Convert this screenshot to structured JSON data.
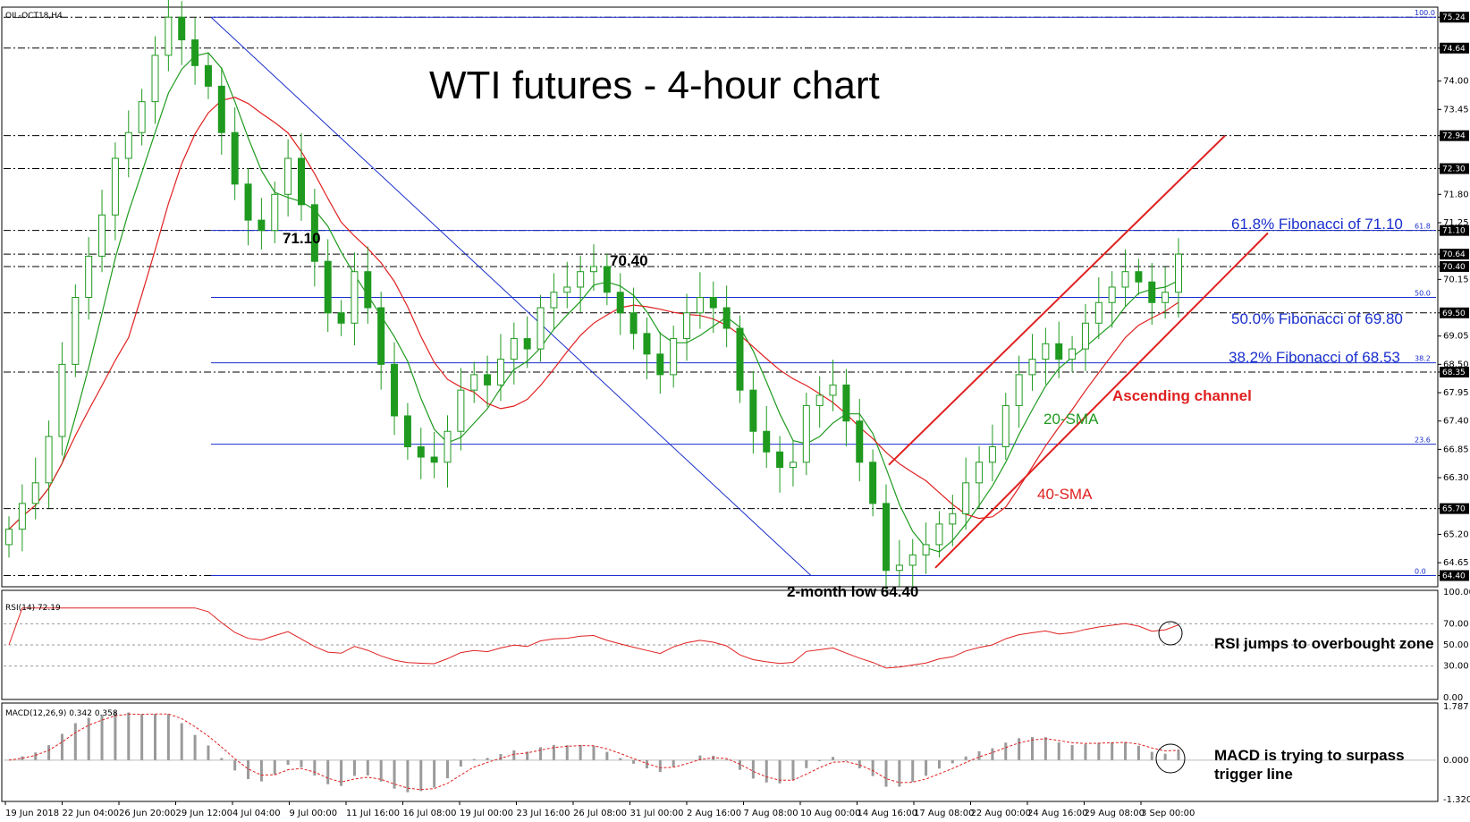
{
  "symbol": "OIL-OCT18,H4",
  "title": "WTI futures - 4-hour chart",
  "colors": {
    "candle": "#1f9a1f",
    "sma20": "#1f9a1f",
    "sma40": "#e02020",
    "fib": "#1a2fcc",
    "channel": "#e02020",
    "trendline": "#1a2fcc",
    "rsi": "#e02020",
    "macd_hist": "#9a9a9a",
    "macd_signal": "#e02020"
  },
  "price_axis": {
    "ticks": [
      "75.24",
      "74.64",
      "74.00",
      "73.45",
      "72.94",
      "72.30",
      "71.80",
      "71.25",
      "71.10",
      "70.64",
      "70.40",
      "70.15",
      "69.50",
      "69.05",
      "68.50",
      "68.35",
      "67.95",
      "67.40",
      "66.85",
      "66.30",
      "65.70",
      "65.20",
      "64.65",
      "64.40"
    ],
    "highlighted": [
      "75.24",
      "74.64",
      "72.94",
      "72.30",
      "71.10",
      "70.64",
      "70.40",
      "69.50",
      "68.35",
      "65.70",
      "64.40"
    ],
    "ylim": [
      64.2,
      75.4
    ]
  },
  "x_axis": {
    "labels": [
      "19 Jun 2018",
      "22 Jun 04:00",
      "26 Jun 20:00",
      "29 Jun 12:00",
      "4 Jul 04:00",
      "9 Jul 00:00",
      "11 Jul 16:00",
      "16 Jul 08:00",
      "19 Jul 00:00",
      "23 Jul 16:00",
      "26 Jul 08:00",
      "31 Jul 00:00",
      "2 Aug 16:00",
      "7 Aug 08:00",
      "10 Aug 00:00",
      "14 Aug 16:00",
      "17 Aug 08:00",
      "22 Aug 00:00",
      "24 Aug 16:00",
      "29 Aug 08:00",
      "3 Sep 00:00"
    ]
  },
  "fibonacci": {
    "levels": [
      {
        "pct": "100.0",
        "price": 75.24
      },
      {
        "pct": "61.8",
        "price": 71.1,
        "label": "61.8% Fibonacci of 71.10"
      },
      {
        "pct": "50.0",
        "price": 69.8,
        "label": "50.0% Fibonacci of 69.80"
      },
      {
        "pct": "38.2",
        "price": 68.53,
        "label": "38.2% Fibonacci of 68.53"
      },
      {
        "pct": "23.6",
        "price": 66.95
      },
      {
        "pct": "0.0",
        "price": 64.4
      }
    ]
  },
  "annotations": {
    "label_7110": "71.10",
    "label_7040": "70.40",
    "low_label": "2-month low 64.40",
    "sma20": "20-SMA",
    "sma40": "40-SMA",
    "channel": "Ascending channel",
    "rsi_note": "RSI jumps to overbought zone",
    "macd_note_1": "MACD is trying to surpass",
    "macd_note_2": "trigger line"
  },
  "rsi": {
    "label": "RSI(14) 72.19",
    "ticks": [
      "100.00",
      "70.00",
      "50.00",
      "30.00",
      "0.00"
    ]
  },
  "macd": {
    "label": "MACD(12,26,9) 0.342 0.358",
    "ticks": [
      "1.787",
      "0.000",
      "-1.320"
    ]
  },
  "chart_data": {
    "type": "line",
    "series": [
      {
        "name": "OIL-OCT18,H4",
        "values": [
          65.3,
          65.8,
          66.2,
          67.1,
          68.5,
          69.8,
          70.6,
          71.4,
          72.5,
          73.0,
          73.6,
          74.5,
          75.24,
          74.8,
          74.3,
          73.9,
          73.0,
          72.0,
          71.3,
          71.1,
          71.8,
          72.5,
          71.6,
          70.5,
          69.5,
          69.3,
          70.3,
          69.6,
          68.5,
          67.5,
          66.9,
          66.7,
          66.6,
          67.2,
          68.0,
          68.3,
          68.1,
          68.6,
          69.0,
          68.8,
          69.6,
          69.9,
          70.0,
          70.3,
          70.4,
          69.9,
          69.5,
          69.1,
          68.7,
          68.3,
          69.0,
          69.5,
          69.8,
          69.6,
          69.2,
          68.0,
          67.2,
          66.8,
          66.5,
          66.6,
          67.7,
          67.9,
          68.1,
          67.4,
          66.6,
          65.8,
          64.5,
          64.6,
          64.8,
          65.0,
          65.4,
          65.6,
          66.2,
          66.6,
          66.9,
          67.7,
          68.3,
          68.6,
          68.9,
          68.6,
          68.8,
          69.3,
          69.7,
          70.0,
          70.3,
          70.1,
          69.7,
          69.9,
          70.64
        ]
      }
    ]
  }
}
